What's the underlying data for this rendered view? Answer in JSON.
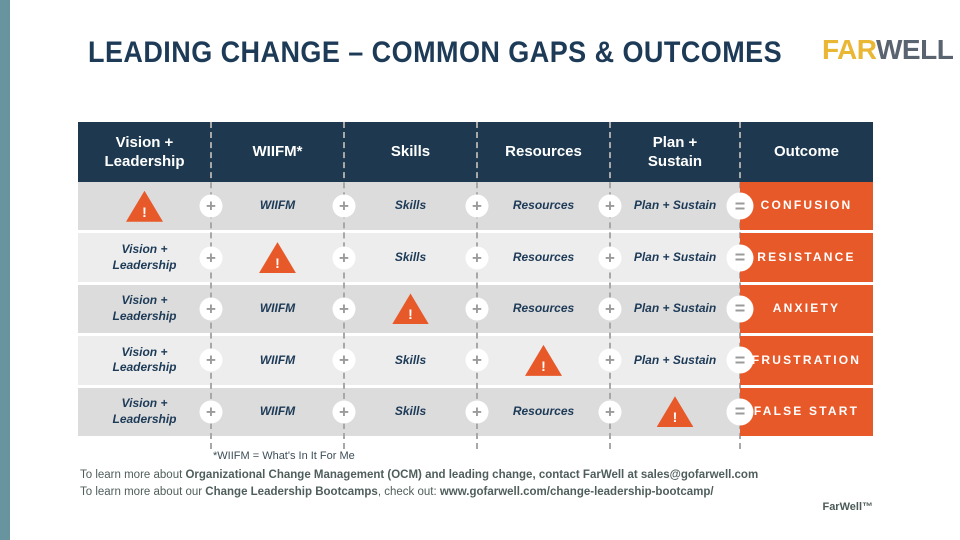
{
  "slide": {
    "title": "LEADING CHANGE – COMMON GAPS & OUTCOMES",
    "logo": {
      "far": "FAR",
      "well": "WELL"
    },
    "brand_trademark": "FarWell™"
  },
  "colors": {
    "accent_orange": "#e8592a",
    "header_navy": "#1d384f",
    "title_navy": "#1d3a57",
    "sidebar_teal": "#68949f",
    "logo_gold": "#eab735",
    "logo_gray": "#5a6370",
    "row_gray_dark": "#dcdcdc",
    "row_gray_light": "#ededed"
  },
  "icons": {
    "warning": "!",
    "plus": "+",
    "equals": "="
  },
  "table": {
    "headers": [
      "Vision +\nLeadership",
      "WIIFM*",
      "Skills",
      "Resources",
      "Plan +\nSustain",
      "Outcome"
    ],
    "rows": [
      {
        "cells": [
          "",
          "WIIFM",
          "Skills",
          "Resources",
          "Plan + Sustain"
        ],
        "gap_column": "Vision + Leadership",
        "outcome": "CONFUSION"
      },
      {
        "cells": [
          "Vision +\nLeadership",
          "",
          "Skills",
          "Resources",
          "Plan + Sustain"
        ],
        "gap_column": "WIIFM",
        "outcome": "RESISTANCE"
      },
      {
        "cells": [
          "Vision +\nLeadership",
          "WIIFM",
          "",
          "Resources",
          "Plan + Sustain"
        ],
        "gap_column": "Skills",
        "outcome": "ANXIETY"
      },
      {
        "cells": [
          "Vision +\nLeadership",
          "WIIFM",
          "Skills",
          "",
          "Plan + Sustain"
        ],
        "gap_column": "Resources",
        "outcome": "FRUSTRATION"
      },
      {
        "cells": [
          "Vision +\nLeadership",
          "WIIFM",
          "Skills",
          "Resources",
          ""
        ],
        "gap_column": "Plan + Sustain",
        "outcome": "FALSE START"
      }
    ]
  },
  "footer": {
    "note": "*WIIFM = What's In It For Me",
    "line1": [
      {
        "t": "To learn more about "
      },
      {
        "t": "Organizational Change Management (OCM) and leading change, contact FarWell at sales@gofarwell.com"
      }
    ],
    "line2": [
      {
        "t": "To learn more about our "
      },
      {
        "t": "Change Leadership Bootcamps"
      },
      {
        "t": ", check out: "
      },
      {
        "t": "www.gofarwell.com/change-leadership-bootcamp/"
      }
    ]
  }
}
